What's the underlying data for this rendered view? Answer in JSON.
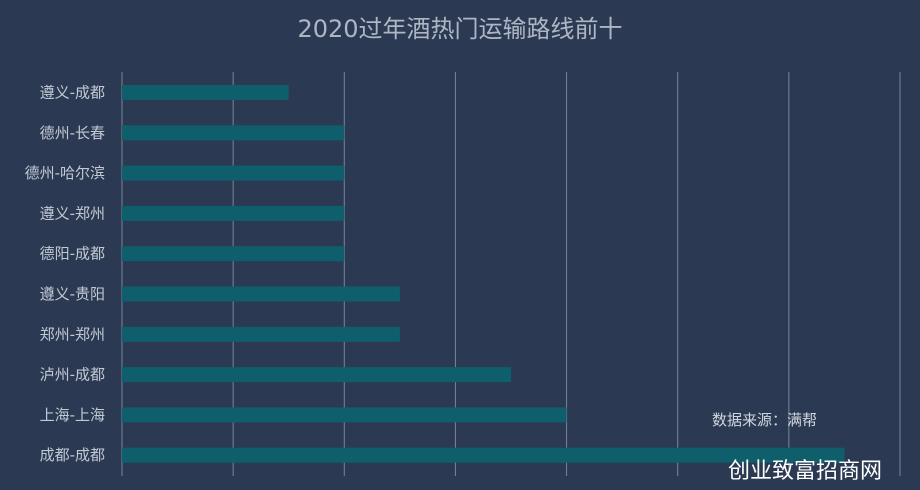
{
  "chart_data": {
    "type": "bar",
    "orientation": "horizontal",
    "title": "2020过年酒热门运输路线前十",
    "categories": [
      "遵义-成都",
      "德州-长春",
      "德州-哈尔滨",
      "遵义-郑州",
      "德阳-成都",
      "遵义-贵阳",
      "郑州-郑州",
      "泸州-成都",
      "上海-上海",
      "成都-成都"
    ],
    "values": [
      3,
      4,
      4,
      4,
      4,
      5,
      5,
      7,
      8,
      13
    ],
    "xlim": [
      0,
      14
    ],
    "grid": true,
    "bar_color": "#0e5f6b",
    "background": "#2b3a52"
  },
  "source_note": "数据来源：满帮",
  "watermark": "创业致富招商网"
}
